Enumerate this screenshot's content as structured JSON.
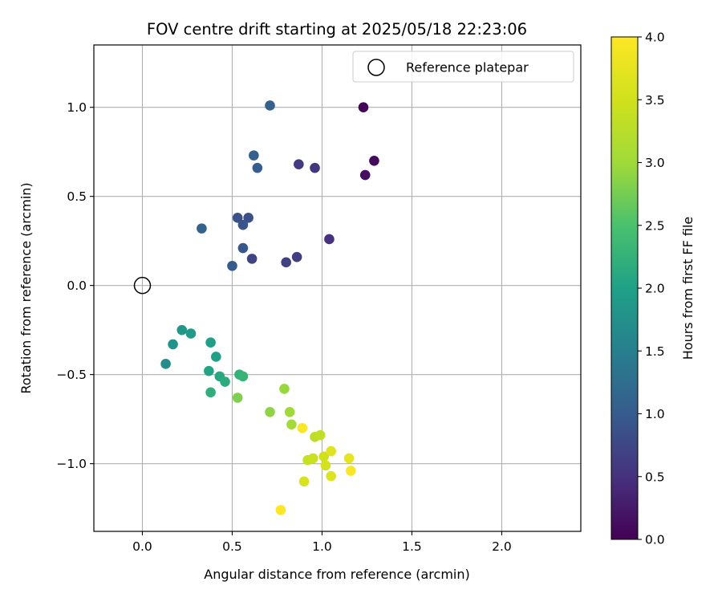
{
  "chart_data": {
    "type": "scatter",
    "title": "FOV centre drift starting at 2025/05/18 22:23:06",
    "xlabel": "Angular distance from reference (arcmin)",
    "ylabel": "Rotation from reference (arcmin)",
    "xlim": [
      -0.27,
      2.44
    ],
    "ylim": [
      -1.38,
      1.35
    ],
    "x_ticks": [
      0.0,
      0.5,
      1.0,
      1.5,
      2.0
    ],
    "x_tick_labels": [
      "0.0",
      "0.5",
      "1.0",
      "1.5",
      "2.0"
    ],
    "y_ticks": [
      -1.0,
      -0.5,
      0.0,
      0.5,
      1.0
    ],
    "y_tick_labels": [
      "−1.0",
      "−0.5",
      "0.0",
      "0.5",
      "1.0"
    ],
    "grid": true,
    "legend": {
      "placement": "top-right",
      "entries": [
        "Reference platepar"
      ]
    },
    "reference_point": {
      "label": "Reference platepar",
      "x": 0.0,
      "y": 0.0,
      "marker": "open-circle"
    },
    "colorbar": {
      "label": "Hours from first FF file",
      "colormap": "viridis",
      "range": [
        0.0,
        4.0
      ],
      "ticks": [
        0.0,
        0.5,
        1.0,
        1.5,
        2.0,
        2.5,
        3.0,
        3.5,
        4.0
      ],
      "tick_labels": [
        "0.0",
        "0.5",
        "1.0",
        "1.5",
        "2.0",
        "2.5",
        "3.0",
        "3.5",
        "4.0"
      ]
    },
    "points": [
      {
        "x": 1.23,
        "y": 1.0,
        "h": 0.05
      },
      {
        "x": 1.29,
        "y": 0.7,
        "h": 0.1
      },
      {
        "x": 1.24,
        "y": 0.62,
        "h": 0.15
      },
      {
        "x": 1.04,
        "y": 0.26,
        "h": 0.5
      },
      {
        "x": 0.96,
        "y": 0.66,
        "h": 0.55
      },
      {
        "x": 0.87,
        "y": 0.68,
        "h": 0.6
      },
      {
        "x": 0.86,
        "y": 0.16,
        "h": 0.62
      },
      {
        "x": 0.8,
        "y": 0.13,
        "h": 0.68
      },
      {
        "x": 0.61,
        "y": 0.15,
        "h": 0.72
      },
      {
        "x": 0.59,
        "y": 0.38,
        "h": 0.85
      },
      {
        "x": 0.53,
        "y": 0.38,
        "h": 0.88
      },
      {
        "x": 0.56,
        "y": 0.34,
        "h": 0.92
      },
      {
        "x": 0.56,
        "y": 0.21,
        "h": 0.95
      },
      {
        "x": 0.5,
        "y": 0.11,
        "h": 1.0
      },
      {
        "x": 0.64,
        "y": 0.66,
        "h": 1.02
      },
      {
        "x": 0.62,
        "y": 0.73,
        "h": 1.05
      },
      {
        "x": 0.71,
        "y": 1.01,
        "h": 1.08
      },
      {
        "x": 0.33,
        "y": 0.32,
        "h": 1.1
      },
      {
        "x": 0.13,
        "y": -0.44,
        "h": 1.7
      },
      {
        "x": 0.17,
        "y": -0.33,
        "h": 1.8
      },
      {
        "x": 0.22,
        "y": -0.25,
        "h": 1.85
      },
      {
        "x": 0.27,
        "y": -0.27,
        "h": 1.9
      },
      {
        "x": 0.38,
        "y": -0.32,
        "h": 1.95
      },
      {
        "x": 0.41,
        "y": -0.4,
        "h": 2.0
      },
      {
        "x": 0.37,
        "y": -0.48,
        "h": 2.05
      },
      {
        "x": 0.43,
        "y": -0.51,
        "h": 2.1
      },
      {
        "x": 0.46,
        "y": -0.54,
        "h": 2.15
      },
      {
        "x": 0.38,
        "y": -0.6,
        "h": 2.2
      },
      {
        "x": 0.54,
        "y": -0.5,
        "h": 2.25
      },
      {
        "x": 0.56,
        "y": -0.51,
        "h": 2.3
      },
      {
        "x": 0.53,
        "y": -0.63,
        "h": 2.8
      },
      {
        "x": 0.71,
        "y": -0.71,
        "h": 2.9
      },
      {
        "x": 0.79,
        "y": -0.58,
        "h": 2.95
      },
      {
        "x": 0.82,
        "y": -0.71,
        "h": 3.0
      },
      {
        "x": 0.83,
        "y": -0.78,
        "h": 3.05
      },
      {
        "x": 0.96,
        "y": -0.85,
        "h": 3.3
      },
      {
        "x": 0.99,
        "y": -0.84,
        "h": 3.35
      },
      {
        "x": 0.92,
        "y": -0.98,
        "h": 3.4
      },
      {
        "x": 0.95,
        "y": -0.97,
        "h": 3.45
      },
      {
        "x": 1.01,
        "y": -0.96,
        "h": 3.5
      },
      {
        "x": 1.02,
        "y": -1.01,
        "h": 3.55
      },
      {
        "x": 0.9,
        "y": -1.1,
        "h": 3.6
      },
      {
        "x": 1.05,
        "y": -1.07,
        "h": 3.65
      },
      {
        "x": 1.05,
        "y": -0.93,
        "h": 3.7
      },
      {
        "x": 1.15,
        "y": -0.97,
        "h": 3.75
      },
      {
        "x": 0.89,
        "y": -0.8,
        "h": 3.95
      },
      {
        "x": 1.16,
        "y": -1.04,
        "h": 3.97
      },
      {
        "x": 0.77,
        "y": -1.26,
        "h": 4.0
      }
    ]
  }
}
